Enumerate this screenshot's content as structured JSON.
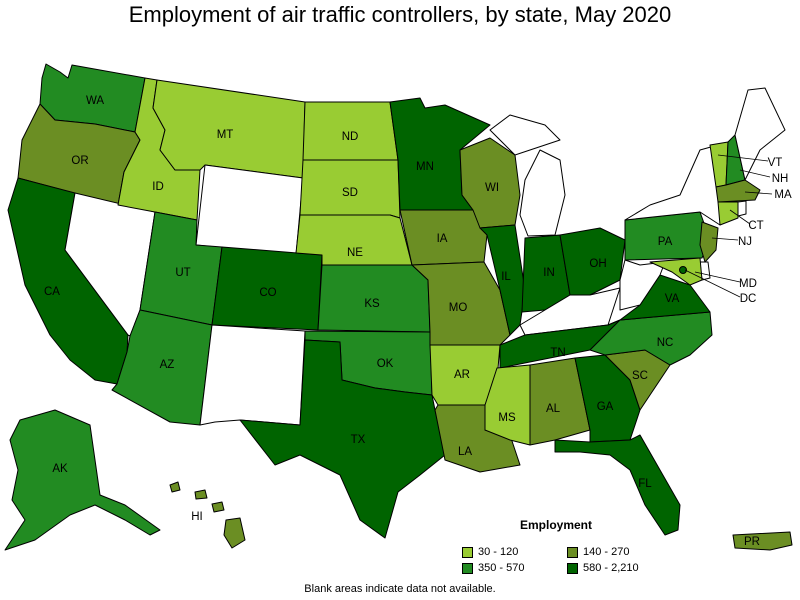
{
  "title": "Employment of air traffic controllers, by state, May 2020",
  "note": "Blank areas indicate data not available.",
  "colors": {
    "c1": "#99cc33",
    "c2": "#6b8e23",
    "c3": "#228b22",
    "c4": "#006400",
    "blank": "#ffffff"
  },
  "legend": {
    "title": "Employment",
    "items": [
      {
        "label": "30 - 120",
        "cls": "c1"
      },
      {
        "label": "140 - 270",
        "cls": "c2"
      },
      {
        "label": "350 - 570",
        "cls": "c3"
      },
      {
        "label": "580 - 2,210",
        "cls": "c4"
      }
    ]
  },
  "states": {
    "WA": {
      "label": "WA",
      "cls": "c3"
    },
    "OR": {
      "label": "OR",
      "cls": "c2"
    },
    "CA": {
      "label": "CA",
      "cls": "c4"
    },
    "NV": {
      "label": "",
      "cls": "blank"
    },
    "ID": {
      "label": "ID",
      "cls": "c1"
    },
    "MT": {
      "label": "MT",
      "cls": "c1"
    },
    "WY": {
      "label": "",
      "cls": "blank"
    },
    "UT": {
      "label": "UT",
      "cls": "c3"
    },
    "AZ": {
      "label": "AZ",
      "cls": "c3"
    },
    "CO": {
      "label": "CO",
      "cls": "c4"
    },
    "NM": {
      "label": "",
      "cls": "blank"
    },
    "ND": {
      "label": "ND",
      "cls": "c1"
    },
    "SD": {
      "label": "SD",
      "cls": "c1"
    },
    "NE": {
      "label": "NE",
      "cls": "c1"
    },
    "KS": {
      "label": "KS",
      "cls": "c3"
    },
    "OK": {
      "label": "OK",
      "cls": "c3"
    },
    "TX": {
      "label": "TX",
      "cls": "c4"
    },
    "MN": {
      "label": "MN",
      "cls": "c4"
    },
    "IA": {
      "label": "IA",
      "cls": "c2"
    },
    "MO": {
      "label": "MO",
      "cls": "c2"
    },
    "AR": {
      "label": "AR",
      "cls": "c1"
    },
    "LA": {
      "label": "LA",
      "cls": "c2"
    },
    "WI": {
      "label": "WI",
      "cls": "c2"
    },
    "IL": {
      "label": "IL",
      "cls": "c4"
    },
    "MI": {
      "label": "",
      "cls": "blank"
    },
    "IN": {
      "label": "IN",
      "cls": "c4"
    },
    "OH": {
      "label": "OH",
      "cls": "c4"
    },
    "KY": {
      "label": "",
      "cls": "blank"
    },
    "TN": {
      "label": "TN",
      "cls": "c4"
    },
    "MS": {
      "label": "MS",
      "cls": "c1"
    },
    "AL": {
      "label": "AL",
      "cls": "c2"
    },
    "GA": {
      "label": "GA",
      "cls": "c4"
    },
    "FL": {
      "label": "FL",
      "cls": "c4"
    },
    "SC": {
      "label": "SC",
      "cls": "c2"
    },
    "NC": {
      "label": "NC",
      "cls": "c3"
    },
    "VA": {
      "label": "VA",
      "cls": "c4"
    },
    "WV": {
      "label": "",
      "cls": "blank"
    },
    "PA": {
      "label": "PA",
      "cls": "c3"
    },
    "NY": {
      "label": "",
      "cls": "blank"
    },
    "ME": {
      "label": "",
      "cls": "blank"
    },
    "VT": {
      "label": "VT",
      "cls": "c1"
    },
    "NH": {
      "label": "NH",
      "cls": "c3"
    },
    "MA": {
      "label": "MA",
      "cls": "c2"
    },
    "CT": {
      "label": "CT",
      "cls": "c1"
    },
    "RI": {
      "label": "",
      "cls": "blank"
    },
    "NJ": {
      "label": "NJ",
      "cls": "c2"
    },
    "DE": {
      "label": "",
      "cls": "blank"
    },
    "MD": {
      "label": "MD",
      "cls": "c1"
    },
    "DC": {
      "label": "DC",
      "cls": "c4"
    },
    "AK": {
      "label": "AK",
      "cls": "c3"
    },
    "HI": {
      "label": "HI",
      "cls": "c2"
    },
    "PR": {
      "label": "PR",
      "cls": "c2"
    }
  }
}
